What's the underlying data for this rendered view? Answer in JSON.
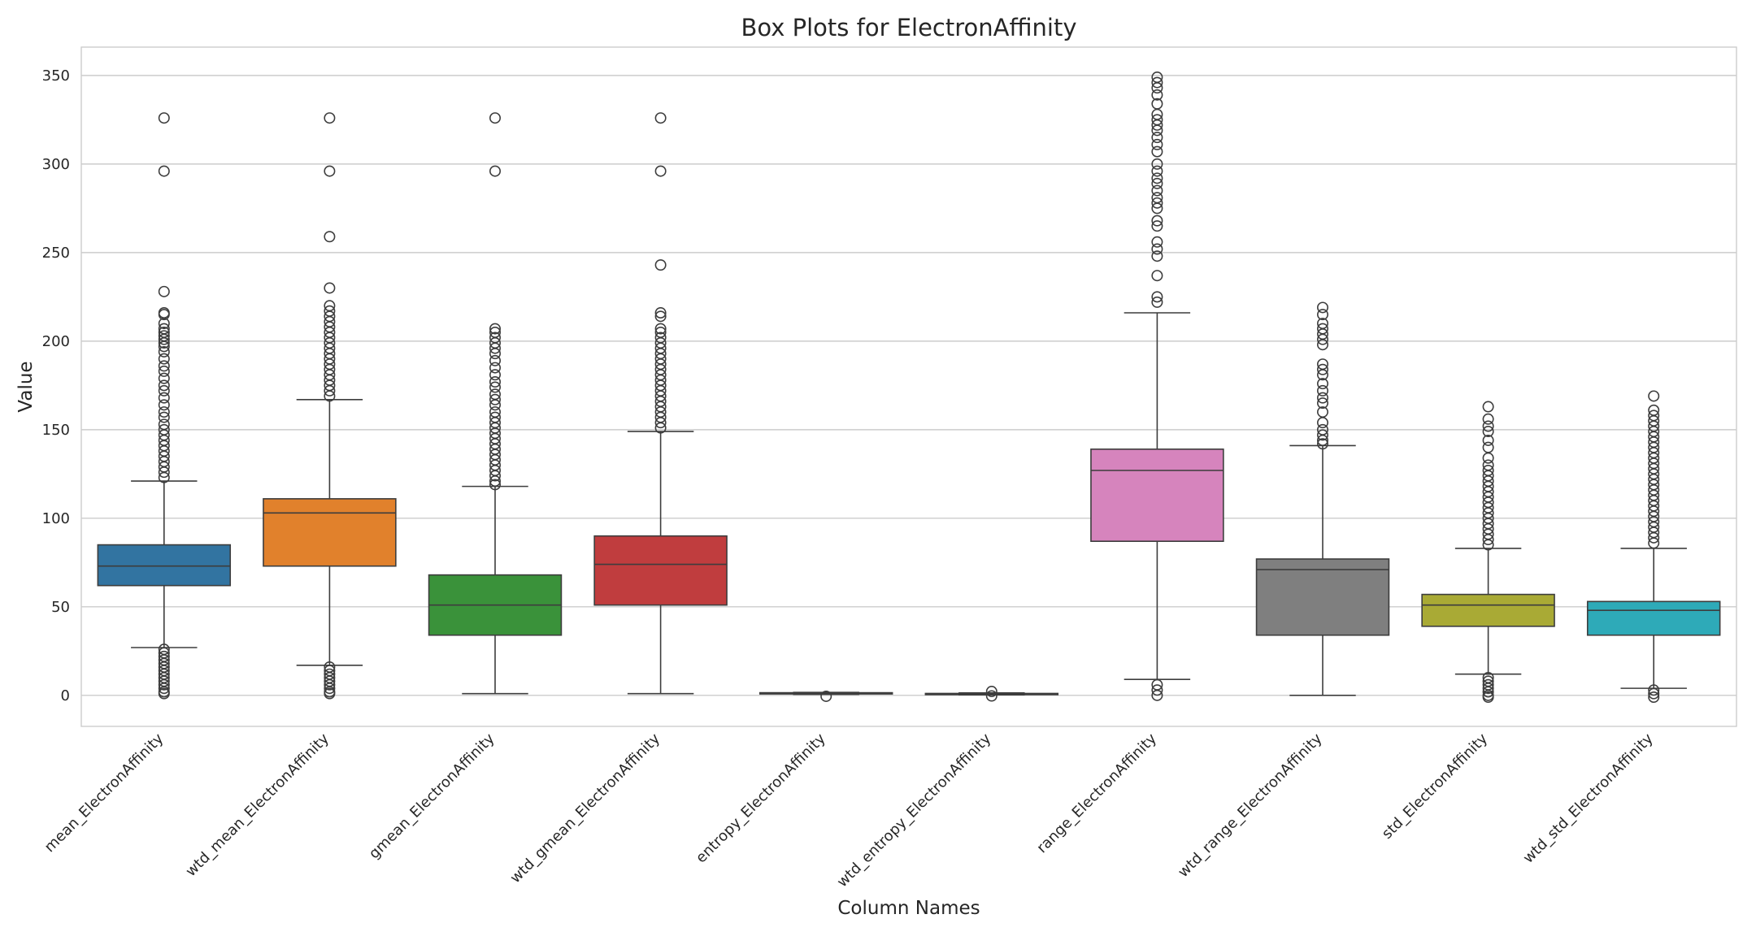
{
  "chart_data": {
    "type": "box",
    "title": "Box Plots for ElectronAffinity",
    "xlabel": "Column Names",
    "ylabel": "Value",
    "ylim": [
      -17.5,
      366
    ],
    "yticks": [
      0,
      50,
      100,
      150,
      200,
      250,
      300,
      350
    ],
    "grid": "horizontal",
    "categories": [
      "mean_ElectronAffinity",
      "wtd_mean_ElectronAffinity",
      "gmean_ElectronAffinity",
      "wtd_gmean_ElectronAffinity",
      "entropy_ElectronAffinity",
      "wtd_entropy_ElectronAffinity",
      "range_ElectronAffinity",
      "wtd_range_ElectronAffinity",
      "std_ElectronAffinity",
      "wtd_std_ElectronAffinity"
    ],
    "colors": [
      "#3274a1",
      "#e1812c",
      "#3a923a",
      "#c03d3e",
      "#9372b2",
      "#845b53",
      "#d684bd",
      "#7f7f7f",
      "#a9aa35",
      "#2eaab8"
    ],
    "boxes": [
      {
        "whislo": 27,
        "q1": 62,
        "med": 73,
        "q3": 85,
        "whishi": 121,
        "fliers": [
          326,
          296,
          228,
          216,
          215,
          210,
          207,
          205,
          203,
          201,
          199,
          197,
          194,
          190,
          186,
          183,
          179,
          175,
          172,
          168,
          164,
          160,
          157,
          153,
          150,
          147,
          144,
          141,
          138,
          135,
          132,
          129,
          126,
          123,
          26,
          24,
          22,
          20,
          18,
          16,
          14,
          12,
          10,
          8,
          6,
          4,
          2,
          1
        ]
      },
      {
        "whislo": 17,
        "q1": 73,
        "med": 103,
        "q3": 111,
        "whishi": 167,
        "fliers": [
          326,
          296,
          259,
          230,
          220,
          217,
          214,
          211,
          208,
          205,
          202,
          199,
          196,
          193,
          190,
          187,
          184,
          181,
          178,
          175,
          172,
          169,
          16,
          14,
          12,
          10,
          8,
          6,
          4,
          2,
          1
        ]
      },
      {
        "whislo": 1,
        "q1": 34,
        "med": 51,
        "q3": 68,
        "whishi": 118,
        "fliers": [
          326,
          296,
          207,
          205,
          202,
          199,
          196,
          193,
          189,
          185,
          181,
          177,
          174,
          170,
          167,
          164,
          160,
          157,
          154,
          151,
          148,
          145,
          142,
          139,
          136,
          133,
          130,
          127,
          124,
          121,
          119
        ]
      },
      {
        "whislo": 1,
        "q1": 51,
        "med": 74,
        "q3": 90,
        "whishi": 149,
        "fliers": [
          326,
          296,
          243,
          216,
          214,
          207,
          205,
          202,
          199,
          196,
          193,
          190,
          187,
          184,
          181,
          178,
          175,
          172,
          169,
          166,
          163,
          160,
          157,
          154,
          151
        ]
      },
      {
        "whislo": 0.6,
        "q1": 0.9,
        "med": 1.2,
        "q3": 1.5,
        "whishi": 1.7,
        "fliers": [
          -0.5
        ]
      },
      {
        "whislo": 0.3,
        "q1": 0.6,
        "med": 0.9,
        "q3": 1.1,
        "whishi": 1.4,
        "fliers": [
          2.2,
          -0.3
        ]
      },
      {
        "whislo": 9,
        "q1": 87,
        "med": 127,
        "q3": 139,
        "whishi": 216,
        "fliers": [
          349,
          346,
          343,
          339,
          334,
          328,
          325,
          322,
          319,
          315,
          311,
          307,
          300,
          296,
          292,
          289,
          285,
          281,
          278,
          275,
          268,
          265,
          256,
          252,
          248,
          237,
          225,
          222,
          6,
          3,
          0
        ]
      },
      {
        "whislo": 0,
        "q1": 34,
        "med": 71,
        "q3": 77,
        "whishi": 141,
        "fliers": [
          219,
          215,
          210,
          207,
          204,
          201,
          198,
          187,
          184,
          181,
          176,
          172,
          168,
          165,
          160,
          154,
          150,
          147,
          144,
          142
        ]
      },
      {
        "whislo": 12,
        "q1": 39,
        "med": 51,
        "q3": 57,
        "whishi": 83,
        "fliers": [
          163,
          156,
          152,
          149,
          144,
          140,
          134,
          130,
          127,
          124,
          121,
          118,
          115,
          112,
          109,
          106,
          103,
          100,
          97,
          94,
          91,
          88,
          85,
          10,
          8,
          6,
          4,
          2,
          0,
          -1
        ]
      },
      {
        "whislo": 4,
        "q1": 34,
        "med": 48,
        "q3": 53,
        "whishi": 83,
        "fliers": [
          169,
          161,
          158,
          155,
          152,
          149,
          146,
          143,
          140,
          137,
          134,
          131,
          128,
          125,
          122,
          119,
          116,
          113,
          110,
          107,
          104,
          101,
          98,
          95,
          92,
          89,
          86,
          3,
          1,
          -1
        ]
      }
    ]
  }
}
